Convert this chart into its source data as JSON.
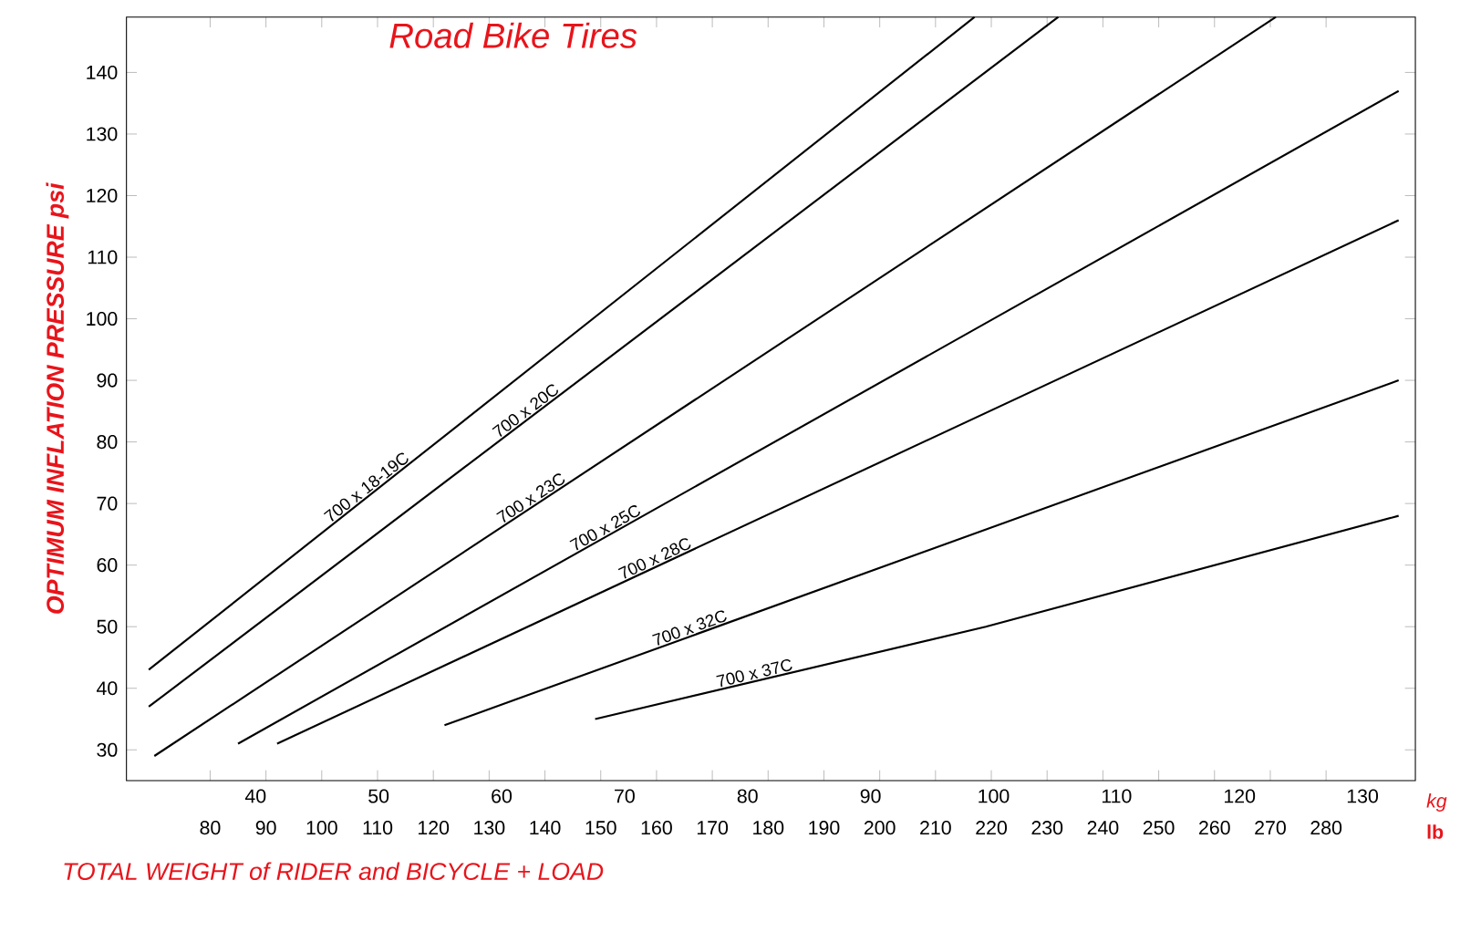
{
  "chart_data": {
    "type": "line",
    "title": "Road Bike Tires",
    "xlabel": "TOTAL WEIGHT of RIDER and BICYCLE + LOAD",
    "ylabel": "OPTIMUM INFLATION PRESSURE psi",
    "x2label": "kg",
    "annotations": [
      "lb"
    ],
    "series": [
      {
        "name": "700 x 18-19C",
        "color": "#000000",
        "x": [
          69,
          217
        ],
        "values": [
          43,
          149
        ]
      },
      {
        "name": "700 x 20C",
        "color": "#000000",
        "x": [
          69,
          232
        ],
        "values": [
          37,
          149
        ]
      },
      {
        "name": "700 x 23C",
        "color": "#000000",
        "x": [
          70,
          271
        ],
        "values": [
          29,
          149
        ]
      },
      {
        "name": "700 x 25C",
        "color": "#000000",
        "x": [
          85,
          293
        ],
        "values": [
          31,
          137
        ]
      },
      {
        "name": "700 x 28C",
        "color": "#000000",
        "x": [
          92,
          293
        ],
        "values": [
          31,
          116
        ]
      },
      {
        "name": "700 x 32C",
        "color": "#000000",
        "x": [
          122,
          293
        ],
        "values": [
          34,
          90
        ]
      },
      {
        "name": "700 x 37C",
        "color": "#000000",
        "x": [
          149,
          219,
          293
        ],
        "values": [
          35,
          50,
          68
        ]
      }
    ],
    "xlim": [
      65,
      296
    ],
    "ylim": [
      25,
      149
    ],
    "xticks": [
      80,
      90,
      100,
      110,
      120,
      130,
      140,
      150,
      160,
      170,
      180,
      190,
      200,
      210,
      220,
      230,
      240,
      250,
      260,
      270,
      280
    ],
    "yticks": [
      30,
      40,
      50,
      60,
      70,
      80,
      90,
      100,
      110,
      120,
      130,
      140
    ],
    "x2lim": [
      29.5,
      134.3
    ],
    "x2ticks": [
      40,
      50,
      60,
      70,
      80,
      90,
      100,
      110,
      120,
      130
    ],
    "grid": false,
    "legend": false,
    "marker": "none",
    "line_style": "solid"
  }
}
